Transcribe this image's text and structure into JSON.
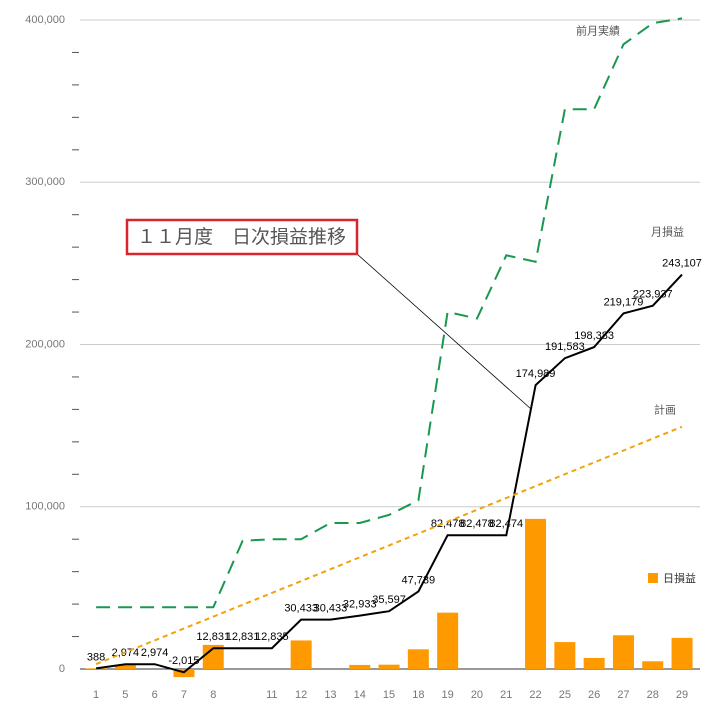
{
  "chart_data": {
    "type": "combo",
    "title": "１１月度　日次損益推移",
    "categories": [
      "1",
      "5",
      "6",
      "7",
      "8",
      null,
      "11",
      "12",
      "13",
      "14",
      "15",
      "18",
      "19",
      "20",
      "21",
      "22",
      "25",
      "26",
      "27",
      "28",
      "29"
    ],
    "ylim": [
      0,
      400000
    ],
    "yticks": [
      {
        "value": 0,
        "label": "0"
      },
      {
        "value": 100000,
        "label": "100,000"
      },
      {
        "value": 200000,
        "label": "200,000"
      },
      {
        "value": 300000,
        "label": "300,000"
      },
      {
        "value": 400000,
        "label": "400,000"
      }
    ],
    "grid": true,
    "legend": "right",
    "series": [
      {
        "name": "日損益",
        "type": "bar",
        "color": "#ff9900",
        "values": [
          388,
          2586,
          0,
          -4989,
          14846,
          0,
          4,
          17598,
          0,
          2500,
          2664,
          12142,
          34739,
          0,
          -4,
          92515,
          16594,
          6800,
          20796,
          4758,
          19170
        ]
      },
      {
        "name": "月損益",
        "type": "line",
        "color": "#000000",
        "dash": "solid",
        "values": [
          388,
          2974,
          2974,
          -2015,
          12831,
          12831,
          12835,
          30433,
          30433,
          32933,
          35597,
          47739,
          82478,
          82478,
          82474,
          174989,
          191583,
          198383,
          219179,
          223937,
          243107
        ],
        "value_labels": [
          "388",
          "2,974",
          "2,974",
          "-2,015",
          "12,831",
          "12,831",
          "12,835",
          "30,433",
          "30,433",
          "32,933",
          "35,597",
          "47,739",
          "82,478",
          "82,478",
          "82,474",
          "174,989",
          "191,583",
          "198,383",
          "219,179",
          "223,937",
          "243,107"
        ]
      },
      {
        "name": "計画",
        "type": "line",
        "color": "#f0a30a",
        "dash": "short",
        "values": [
          3000,
          10315,
          17630,
          24945,
          32260,
          39575,
          46890,
          54205,
          61520,
          68835,
          76150,
          83465,
          90780,
          98095,
          105410,
          112725,
          120040,
          127355,
          134670,
          141985,
          149300
        ]
      },
      {
        "name": "前月実績",
        "type": "line",
        "color": "#1a9850",
        "dash": "long",
        "values": [
          38000,
          38000,
          38000,
          38000,
          38000,
          79000,
          80000,
          80000,
          90000,
          90000,
          95000,
          104000,
          220000,
          216000,
          255000,
          251000,
          345000,
          345000,
          385000,
          398000,
          401000
        ]
      }
    ]
  }
}
